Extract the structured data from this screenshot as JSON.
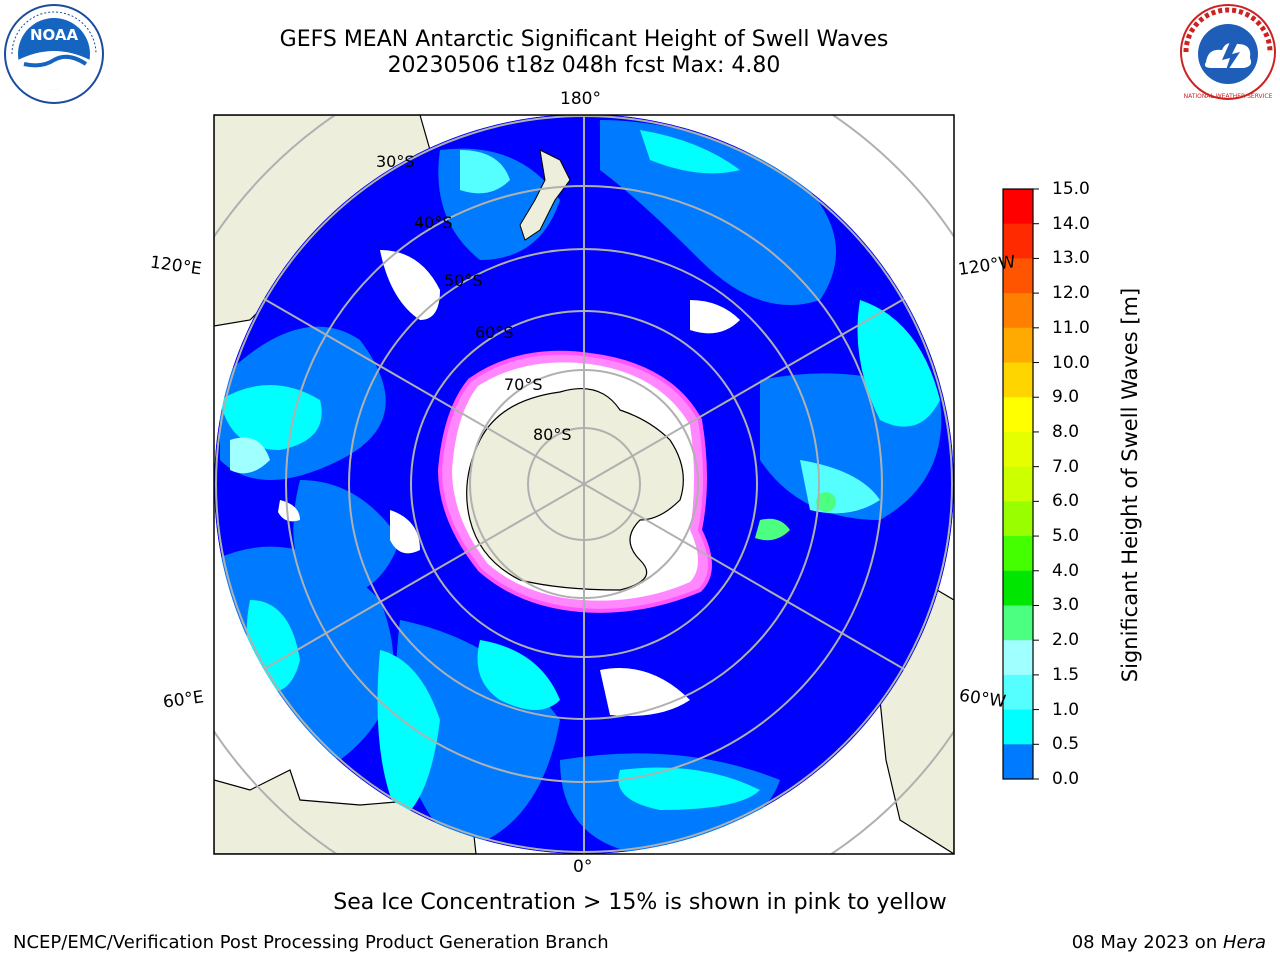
{
  "title": {
    "line1": "GEFS MEAN Antarctic Significant Height of Swell Waves",
    "line2": "20230506 t18z 048h fcst   Max: 4.80"
  },
  "map": {
    "projection": "south polar stereographic",
    "longitude_labels": [
      "180°",
      "120°E",
      "120°W",
      "60°E",
      "60°W",
      "0°"
    ],
    "latitude_labels": [
      "30°S",
      "40°S",
      "50°S",
      "60°S",
      "70°S",
      "80°S"
    ],
    "colors": {
      "land": "#eeeedc",
      "ocean_low": "#0000ff",
      "ocean_mid": "#007bff",
      "ocean_high": "#00ffff",
      "ice": "#ffffff",
      "ice_edge": "#ff55ff",
      "grid": "#b0b0b0"
    }
  },
  "colorbar": {
    "title": "Significant Height of Swell Waves [m]",
    "tick_labels": [
      "15.0",
      "14.0",
      "13.0",
      "12.0",
      "11.0",
      "10.0",
      "9.0",
      "8.0",
      "7.0",
      "6.0",
      "5.0",
      "4.0",
      "3.0",
      "2.0",
      "1.5",
      "1.0",
      "0.5",
      "0.0"
    ],
    "colors_top_to_bottom": [
      "#ff0000",
      "#ff2a00",
      "#ff5500",
      "#ff8000",
      "#ffaa00",
      "#ffd500",
      "#ffff00",
      "#e6ff00",
      "#ccff00",
      "#99ff00",
      "#44ff00",
      "#00e600",
      "#4dff80",
      "#a0ffff",
      "#55ffff",
      "#00ffff",
      "#007bff",
      "#0000ff"
    ]
  },
  "caption": "Sea Ice Concentration > 15% is shown in pink to yellow",
  "footer": {
    "left": "NCEP/EMC/Verification Post Processing Product Generation Branch",
    "date": "08 May 2023 on ",
    "host": "Hera"
  },
  "logos": {
    "left": "NOAA",
    "right": "NATIONAL WEATHER SERVICE"
  }
}
